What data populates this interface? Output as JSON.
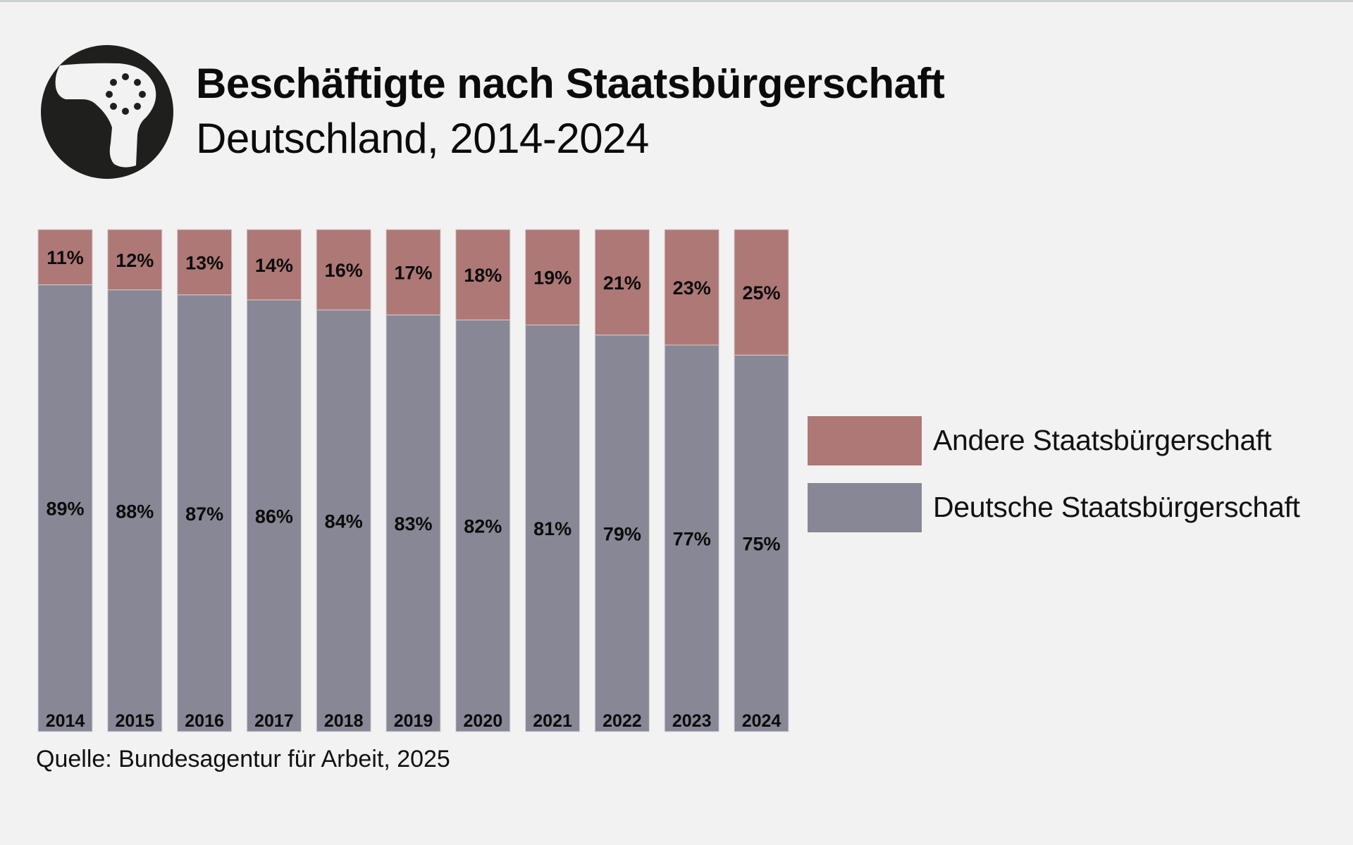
{
  "header": {
    "title": "Beschäftigte nach Staatsbürgerschaft",
    "subtitle": "Deutschland, 2014-2024",
    "icon": "shower-head-icon"
  },
  "source": "Quelle: Bundesagentur für Arbeit, 2025",
  "chart_data": {
    "type": "bar",
    "stacked": true,
    "percent_stacked": true,
    "title": "Beschäftigte nach Staatsbürgerschaft",
    "subtitle": "Deutschland, 2014-2024",
    "xlabel": "",
    "ylabel": "",
    "ylim": [
      0,
      100
    ],
    "grid": false,
    "legend_position": "right",
    "categories": [
      "2014",
      "2015",
      "2016",
      "2017",
      "2018",
      "2019",
      "2020",
      "2021",
      "2022",
      "2023",
      "2024"
    ],
    "series": [
      {
        "name": "Deutsche Staatsbürgerschaft",
        "color": "#888796",
        "values": [
          89,
          88,
          87,
          86,
          84,
          83,
          82,
          81,
          79,
          77,
          75
        ],
        "labels": [
          "89%",
          "88%",
          "87%",
          "86%",
          "84%",
          "83%",
          "82%",
          "81%",
          "79%",
          "77%",
          "75%"
        ]
      },
      {
        "name": "Andere Staatsbürgerschaft",
        "color": "#ad7876",
        "values": [
          11,
          12,
          13,
          14,
          16,
          17,
          18,
          19,
          21,
          23,
          25
        ],
        "labels": [
          "11%",
          "12%",
          "13%",
          "14%",
          "16%",
          "17%",
          "18%",
          "19%",
          "21%",
          "23%",
          "25%"
        ]
      }
    ],
    "legend": [
      {
        "label": "Andere Staatsbürgerschaft",
        "color": "#ad7876"
      },
      {
        "label": "Deutsche Staatsbürgerschaft",
        "color": "#888796"
      }
    ],
    "source": "Quelle: Bundesagentur für Arbeit, 2025"
  }
}
